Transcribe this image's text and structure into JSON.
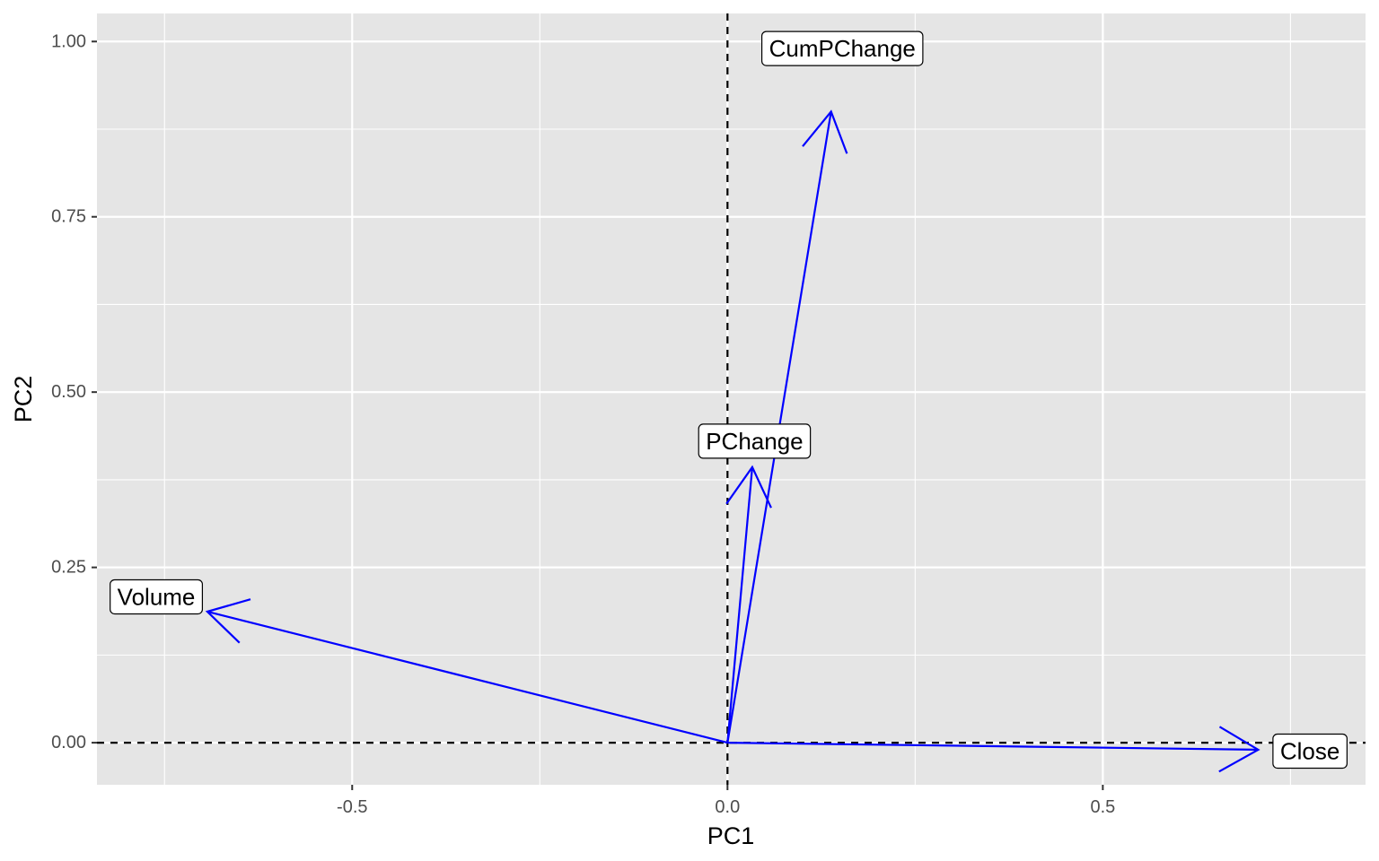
{
  "chart_data": {
    "type": "scatter",
    "subtype": "pca-loadings-biplot",
    "title": "",
    "xlabel": "PC1",
    "ylabel": "PC2",
    "xlim": [
      -0.84,
      0.85
    ],
    "ylim": [
      -0.06,
      1.04
    ],
    "x_ticks": [
      -0.5,
      0.0,
      0.5
    ],
    "x_tick_labels": [
      "-0.5",
      "0.0",
      "0.5"
    ],
    "y_ticks": [
      0.0,
      0.25,
      0.5,
      0.75,
      1.0
    ],
    "y_tick_labels": [
      "0.00",
      "0.25",
      "0.50",
      "0.75",
      "1.00"
    ],
    "reference_lines": {
      "x": 0,
      "y": 0,
      "style": "dashed",
      "color": "#000000"
    },
    "arrow_color": "#0000ff",
    "panel_background": "#e5e5e5",
    "grid": true,
    "grid_color": "#ffffff",
    "loadings": [
      {
        "name": "Close",
        "x": 0.707,
        "y": -0.01
      },
      {
        "name": "Volume",
        "x": -0.693,
        "y": 0.187
      },
      {
        "name": "CumPChange",
        "x": 0.138,
        "y": 0.9
      },
      {
        "name": "PChange",
        "x": 0.033,
        "y": 0.393
      }
    ],
    "labels": [
      {
        "text": "CumPChange",
        "x": 0.153,
        "y": 0.99
      },
      {
        "text": "PChange",
        "x": 0.036,
        "y": 0.43
      },
      {
        "text": "Volume",
        "x": -0.761,
        "y": 0.208
      },
      {
        "text": "Close",
        "x": 0.776,
        "y": -0.012
      }
    ]
  }
}
